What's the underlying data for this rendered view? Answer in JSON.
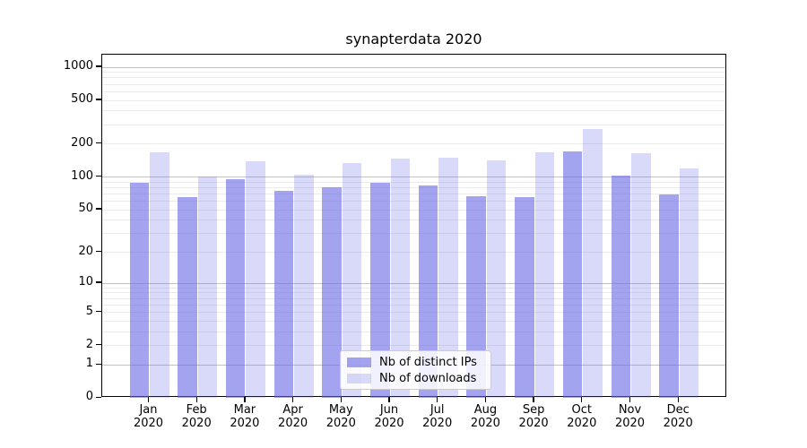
{
  "chart_data": {
    "type": "bar",
    "title": "synapterdata 2020",
    "categories": [
      "Jan 2020",
      "Feb 2020",
      "Mar 2020",
      "Apr 2020",
      "May 2020",
      "Jun 2020",
      "Jul 2020",
      "Aug 2020",
      "Sep 2020",
      "Oct 2020",
      "Nov 2020",
      "Dec 2020"
    ],
    "series": [
      {
        "name": "Nb of distinct IPs",
        "color": "#6666e6",
        "alpha": 0.6,
        "values": [
          88,
          65,
          95,
          75,
          81,
          89,
          84,
          67,
          66,
          170,
          103,
          69
        ]
      },
      {
        "name": "Nb of downloads",
        "color": "#6666e6",
        "alpha": 0.25,
        "values": [
          168,
          101,
          139,
          106,
          134,
          148,
          151,
          142,
          167,
          275,
          164,
          120
        ]
      }
    ],
    "xlabel": "",
    "ylabel": "",
    "yscale": "log1p",
    "ylim": [
      0,
      1300
    ],
    "yticks": [
      0,
      1,
      2,
      5,
      10,
      20,
      50,
      100,
      200,
      500,
      1000
    ],
    "ytick_labels": [
      "0",
      "1",
      "2",
      "5",
      "10",
      "20",
      "50",
      "100",
      "200",
      "500",
      "1000"
    ],
    "grid": "on",
    "legend": {
      "position": "lower center",
      "entries": [
        "Nb of distinct IPs",
        "Nb of downloads"
      ]
    },
    "colors": {
      "major_grid": "#c3c3c3",
      "minor_grid": "#ebebeb",
      "axis": "#000000",
      "text": "#000000",
      "background": "#ffffff",
      "legend_border": "#cccccc"
    }
  }
}
